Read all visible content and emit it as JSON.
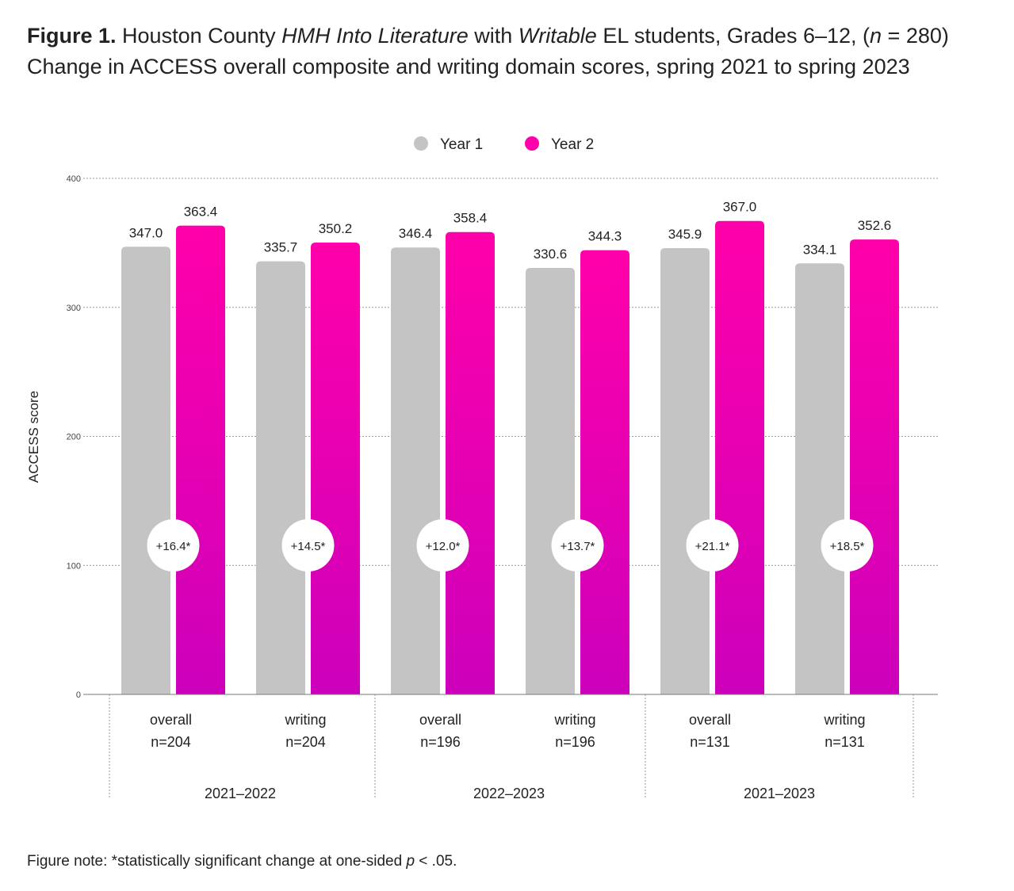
{
  "figure": {
    "label": "Figure 1.",
    "title_1a": " Houston County ",
    "title_1b": "HMH Into Literature",
    "title_1c": " with ",
    "title_1d": "Writable",
    "title_1e": " EL students, Grades 6–12, (",
    "title_1f": "n",
    "title_1g": " = 280)",
    "title_2": "Change in ACCESS overall composite and writing domain scores, spring 2021 to spring 2023"
  },
  "note": {
    "prefix": "Figure note: *statistically significant change at one-sided ",
    "p": "p",
    "suffix": " < .05."
  },
  "chart_data": {
    "type": "bar",
    "ylabel": "ACCESS score",
    "ylim": [
      0,
      400
    ],
    "yticks": [
      "0",
      "100",
      "200",
      "300",
      "400"
    ],
    "legend_position": "top-center",
    "grid": true,
    "series": [
      {
        "name": "Year 1",
        "color": "#c4c4c4",
        "values": [
          347.0,
          335.7,
          346.4,
          330.6,
          345.9,
          334.1
        ],
        "labels": [
          "347.0",
          "335.7",
          "346.4",
          "330.6",
          "345.9",
          "334.1"
        ]
      },
      {
        "name": "Year 2",
        "color": "#ff00aa",
        "color_bottom": "#cc00bb",
        "values": [
          363.4,
          350.2,
          358.4,
          344.3,
          367.0,
          352.6
        ],
        "labels": [
          "363.4",
          "350.2",
          "358.4",
          "344.3",
          "367.0",
          "352.6"
        ]
      }
    ],
    "categories": [
      {
        "name": "overall",
        "n": "n=204",
        "change": "16.4*"
      },
      {
        "name": "writing",
        "n": "n=204",
        "change": "14.5*"
      },
      {
        "name": "overall",
        "n": "n=196",
        "change": "12.0*"
      },
      {
        "name": "writing",
        "n": "n=196",
        "change": "13.7*"
      },
      {
        "name": "overall",
        "n": "n=131",
        "change": "21.1*"
      },
      {
        "name": "writing",
        "n": "n=131",
        "change": "18.5*"
      }
    ],
    "groups": [
      "2021–2022",
      "2022–2023",
      "2021–2023"
    ],
    "change_prefix": "+"
  }
}
